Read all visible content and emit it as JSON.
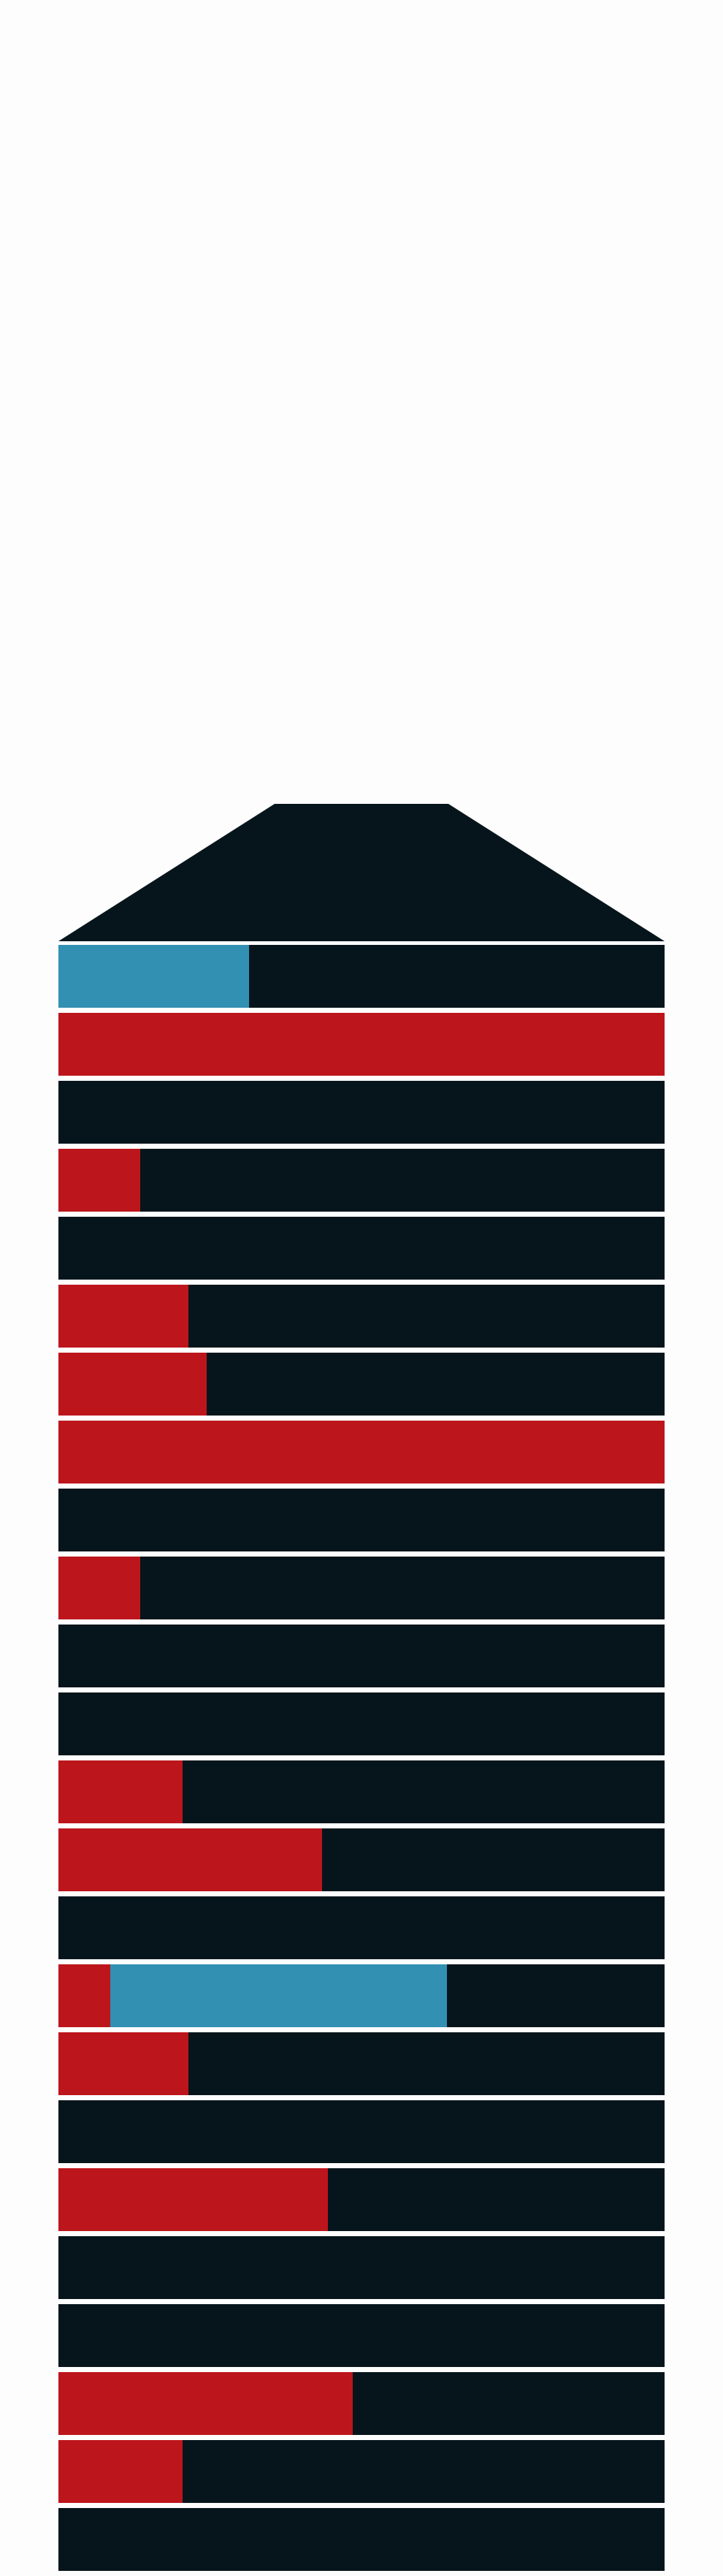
{
  "colors": {
    "background": "#fdfdfd",
    "structure": "#06151b",
    "separator": "#f4f6f7",
    "red": "#bd151c",
    "blue": "#3290b3"
  },
  "floors": [
    {
      "segments": [
        {
          "color": "blue",
          "fraction": 0.315
        }
      ]
    },
    {
      "segments": [
        {
          "color": "red",
          "fraction": 1.0
        }
      ]
    },
    {
      "segments": []
    },
    {
      "segments": [
        {
          "color": "red",
          "fraction": 0.135
        }
      ]
    },
    {
      "segments": []
    },
    {
      "segments": [
        {
          "color": "red",
          "fraction": 0.215
        }
      ]
    },
    {
      "segments": [
        {
          "color": "red",
          "fraction": 0.245
        }
      ]
    },
    {
      "segments": [
        {
          "color": "red",
          "fraction": 1.0
        }
      ]
    },
    {
      "segments": []
    },
    {
      "segments": [
        {
          "color": "red",
          "fraction": 0.135
        }
      ]
    },
    {
      "segments": []
    },
    {
      "segments": []
    },
    {
      "segments": [
        {
          "color": "red",
          "fraction": 0.205
        }
      ]
    },
    {
      "segments": [
        {
          "color": "red",
          "fraction": 0.435
        }
      ]
    },
    {
      "segments": []
    },
    {
      "segments": [
        {
          "color": "red",
          "fraction": 0.085
        },
        {
          "color": "blue",
          "fraction": 0.555
        }
      ]
    },
    {
      "segments": [
        {
          "color": "red",
          "fraction": 0.215
        }
      ]
    },
    {
      "segments": []
    },
    {
      "segments": [
        {
          "color": "red",
          "fraction": 0.445
        }
      ]
    },
    {
      "segments": []
    },
    {
      "segments": []
    },
    {
      "segments": [
        {
          "color": "red",
          "fraction": 0.485
        }
      ]
    },
    {
      "segments": [
        {
          "color": "red",
          "fraction": 0.205
        }
      ]
    },
    {
      "segments": []
    }
  ]
}
